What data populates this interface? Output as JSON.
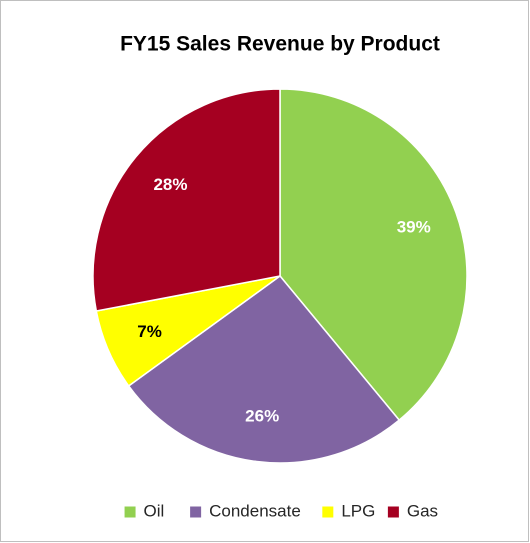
{
  "chart_data": {
    "type": "pie",
    "title": "FY15 Sales Revenue by Product",
    "categories": [
      "Oil",
      "Condensate",
      "LPG",
      "Gas"
    ],
    "values": [
      39,
      26,
      7,
      28
    ],
    "value_labels": [
      "39%",
      "26%",
      "7%",
      "28%"
    ],
    "colors": [
      "#92d050",
      "#8064a2",
      "#ffff00",
      "#a50021"
    ],
    "legend": "bottom"
  }
}
